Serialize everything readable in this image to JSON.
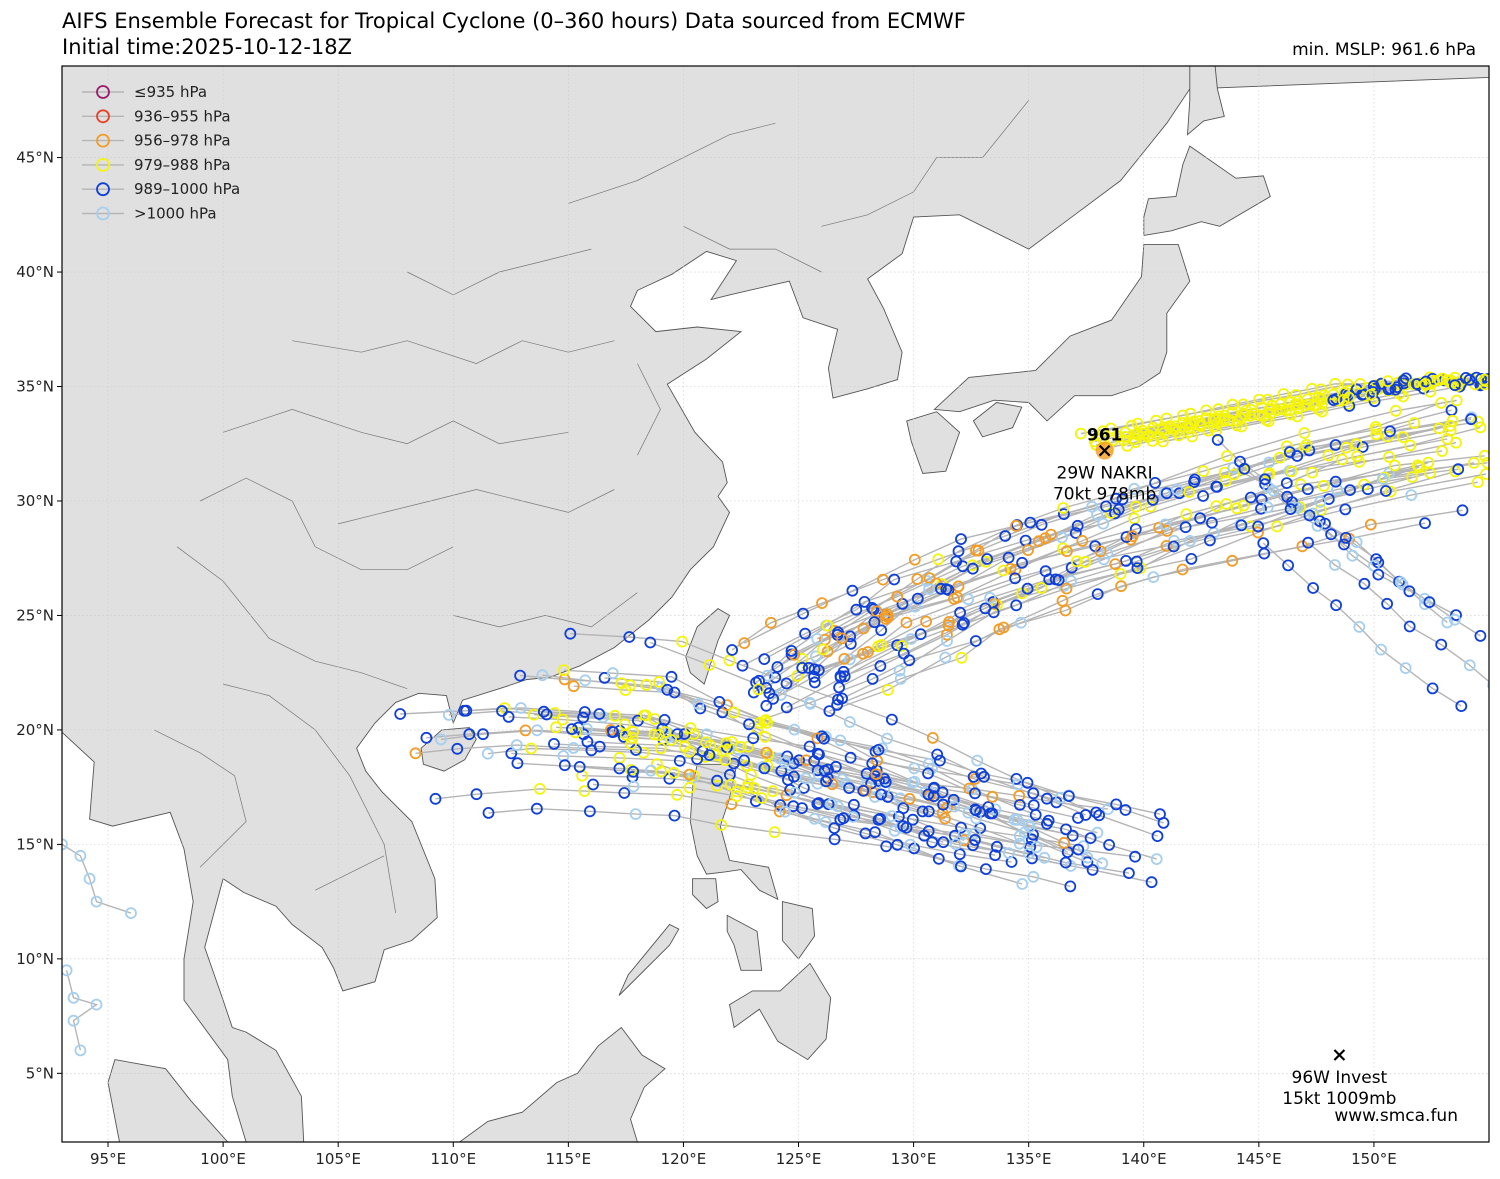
{
  "title_line1": "AIFS Ensemble Forecast for Tropical Cyclone (0–360 hours) Data sourced from ECMWF",
  "title_line2": "Initial time:2025-10-12-18Z",
  "min_mslp": "min. MSLP: 961.6 hPa",
  "watermark": "www.smca.fun",
  "colors": {
    "ocean": "#ffffff",
    "land": "#e0e0e0",
    "coast": "#555555",
    "track": "#b5b5b5",
    "grid": "#c8c8c8"
  },
  "map_extent": {
    "lon": [
      93,
      155
    ],
    "lat": [
      2,
      49
    ]
  },
  "legend": [
    {
      "label": "≤935 hPa",
      "color": "#9b1b6e"
    },
    {
      "label": "936–955 hPa",
      "color": "#e8422a"
    },
    {
      "label": "956–978 hPa",
      "color": "#f39c26"
    },
    {
      "label": "979–988 hPa",
      "color": "#f4f40c"
    },
    {
      "label": "989–1000 hPa",
      "color": "#1040d8"
    },
    {
      "label": ">1000 hPa",
      "color": "#a6cfef"
    }
  ],
  "lon_ticks": [
    "95°E",
    "100°E",
    "105°E",
    "110°E",
    "115°E",
    "120°E",
    "125°E",
    "130°E",
    "135°E",
    "140°E",
    "145°E",
    "150°E"
  ],
  "lon_values": [
    95,
    100,
    105,
    110,
    115,
    120,
    125,
    130,
    135,
    140,
    145,
    150
  ],
  "lat_ticks": [
    "5°N",
    "10°N",
    "15°N",
    "20°N",
    "25°N",
    "30°N",
    "35°N",
    "40°N",
    "45°N"
  ],
  "lat_values": [
    5,
    10,
    15,
    20,
    25,
    30,
    35,
    40,
    45
  ],
  "storms": [
    {
      "label_min": "961",
      "name": "29W NAKRI",
      "info": "70kt 978mb",
      "lon": 138.3,
      "lat": 32.2
    },
    {
      "name": "96W Invest",
      "info": "15kt 1009mb",
      "lon": 148.5,
      "lat": 5.8
    }
  ]
}
